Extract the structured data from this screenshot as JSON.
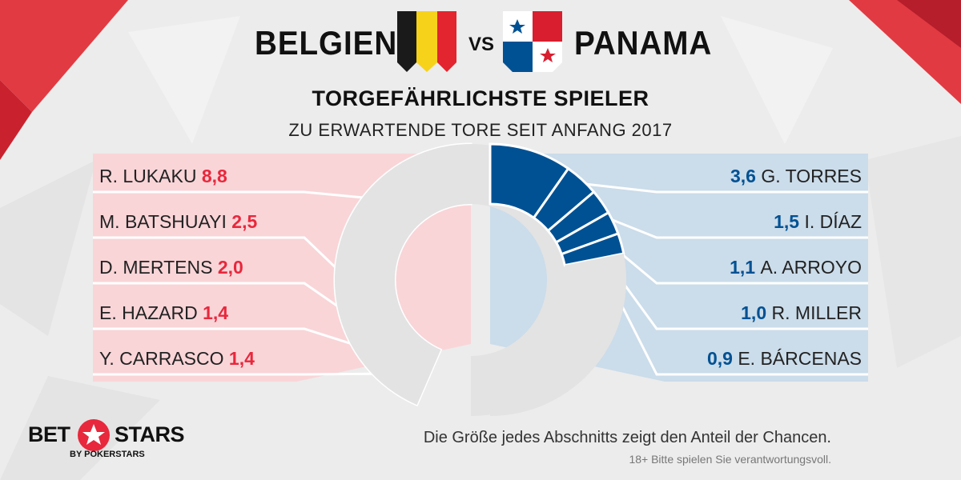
{
  "header": {
    "team_home": "BELGIEN",
    "vs": "VS",
    "team_away": "PANAMA",
    "subtitle": "TORGEFÄHRLICHSTE SPIELER",
    "caption": "ZU ERWARTENDE TORE SEIT ANFANG 2017"
  },
  "colors": {
    "home": "#e8283c",
    "home_panel": "#f9d5d8",
    "away": "#005193",
    "away_panel": "#cbdcea",
    "rest": "#e3e3e3"
  },
  "chart_data": {
    "type": "donut",
    "home": [
      {
        "name": "R. LUKAKU",
        "value": 8.8,
        "label": "8,8"
      },
      {
        "name": "M. BATSHUAYI",
        "value": 2.5,
        "label": "2,5"
      },
      {
        "name": "D. MERTENS",
        "value": 2.0,
        "label": "2,0"
      },
      {
        "name": "E. HAZARD",
        "value": 1.4,
        "label": "1,4"
      },
      {
        "name": "Y. CARRASCO",
        "value": 1.4,
        "label": "1,4"
      }
    ],
    "away": [
      {
        "name": "G. TORRES",
        "value": 3.6,
        "label": "3,6"
      },
      {
        "name": "I. DÍAZ",
        "value": 1.5,
        "label": "1,5"
      },
      {
        "name": "A. ARROYO",
        "value": 1.1,
        "label": "1,1"
      },
      {
        "name": "R. MILLER",
        "value": 1.0,
        "label": "1,0"
      },
      {
        "name": "E. BÁRCENAS",
        "value": 0.9,
        "label": "0,9"
      }
    ]
  },
  "footer": {
    "note": "Die Größe jedes Abschnitts zeigt den Anteil der Chancen.",
    "disclaimer": "18+ Bitte spielen Sie verantwortungsvoll.",
    "logo_left": "BET",
    "logo_right": "STARS",
    "logo_sub": "BY POKERSTARS"
  }
}
